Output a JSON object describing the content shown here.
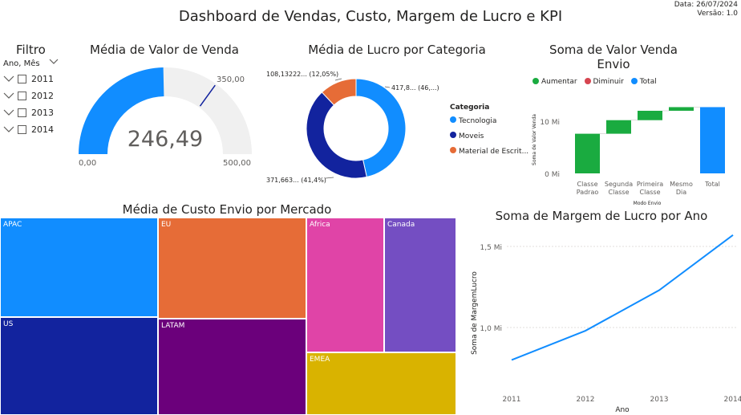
{
  "header": {
    "title": "Dashboard de Vendas, Custo, Margem de Lucro e KPI",
    "date": "Data: 26/07/2024",
    "version": "Versão: 1.0"
  },
  "filter": {
    "title": "Filtro",
    "field": "Ano, Mês",
    "items": [
      "2011",
      "2012",
      "2013",
      "2014"
    ]
  },
  "gauge": {
    "title": "Média de Valor de Venda",
    "value_label": "246,49",
    "min_label": "0,00",
    "max_label": "500,00",
    "target_label": "350,00",
    "value": 246.49,
    "min": 0,
    "max": 500,
    "target": 350,
    "fill_color": "#118DFF",
    "track_color": "#F0F0F0"
  },
  "donut": {
    "title": "Média de Lucro por Categoria",
    "legend_title": "Categoria",
    "label_tecnologia": "417,8... (46,...)",
    "label_moveis": "371,663... (41,4%)",
    "label_material": "108,13222... (12,05%)",
    "legend": [
      "Tecnologia",
      "Moveis",
      "Material de Escrit..."
    ]
  },
  "waterfall": {
    "title_line1": "Soma de Valor Venda",
    "title_line2": "Envio",
    "legend": [
      "Aumentar",
      "Diminuir",
      "Total"
    ],
    "y_axis_title": "Soma de Valor Venda",
    "x_axis_title": "Modo Envio",
    "ticks": [
      "0 Mi",
      "10 Mi"
    ],
    "categories": [
      "Classe Padrao",
      "Segunda Classe",
      "Primeira Classe",
      "Mesmo Dia",
      "Total"
    ],
    "cat_lines": [
      [
        "Classe",
        "Padrao"
      ],
      [
        "Segunda",
        "Classe"
      ],
      [
        "Primeira",
        "Classe"
      ],
      [
        "Mesmo",
        "Dia"
      ],
      [
        "Total",
        ""
      ]
    ]
  },
  "treemap": {
    "title": "Média de Custo Envio por Mercado",
    "labels": [
      "APAC",
      "EU",
      "Africa",
      "Canada",
      "US",
      "LATAM",
      "EMEA"
    ]
  },
  "line": {
    "title": "Soma de Margem de Lucro por Ano",
    "x_axis_title": "Ano",
    "y_axis_title": "Soma de MargemLucro",
    "x_ticks": [
      "2011",
      "2012",
      "2013",
      "2014"
    ],
    "y_ticks": [
      "1,0 Mi",
      "1,5 Mi"
    ]
  },
  "chart_data": [
    {
      "type": "gauge",
      "title": "Média de Valor de Venda",
      "value": 246.49,
      "min": 0,
      "max": 500,
      "target": 350
    },
    {
      "type": "pie",
      "title": "Média de Lucro por Categoria",
      "categories": [
        "Tecnologia",
        "Moveis",
        "Material de Escrit..."
      ],
      "values": [
        417.8,
        371.663,
        108.13222
      ],
      "percent": [
        46.55,
        41.4,
        12.05
      ],
      "colors": [
        "#118DFF",
        "#12239E",
        "#E66C37"
      ]
    },
    {
      "type": "bar",
      "subtype": "waterfall",
      "title": "Soma de Valor Venda Envio",
      "xlabel": "Modo Envio",
      "ylabel": "Soma de Valor Venda",
      "categories": [
        "Classe Padrao",
        "Segunda Classe",
        "Primeira Classe",
        "Mesmo Dia",
        "Total"
      ],
      "values": [
        7.6,
        2.6,
        1.8,
        0.7,
        12.7
      ],
      "ylim": [
        0,
        13
      ],
      "colors": {
        "increase": "#1AAB40",
        "decrease": "#D64550",
        "total": "#118DFF"
      }
    },
    {
      "type": "treemap",
      "title": "Média de Custo Envio por Mercado",
      "categories": [
        "APAC",
        "EU",
        "US",
        "LATAM",
        "Africa",
        "Canada",
        "EMEA"
      ],
      "colors": [
        "#118DFF",
        "#E66C37",
        "#12239E",
        "#6B007B",
        "#E044A7",
        "#744EC2",
        "#D9B300"
      ]
    },
    {
      "type": "line",
      "title": "Soma de Margem de Lucro por Ano",
      "xlabel": "Ano",
      "ylabel": "Soma de MargemLucro",
      "x": [
        2011,
        2012,
        2013,
        2014
      ],
      "series": [
        {
          "values": [
            0.8,
            0.98,
            1.23,
            1.57
          ]
        }
      ],
      "ylim": [
        0.7,
        1.6
      ],
      "color": "#118DFF"
    }
  ]
}
